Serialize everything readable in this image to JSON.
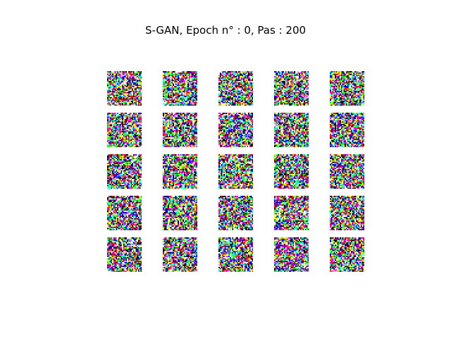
{
  "title": "S-GAN, Epoch n° : 0, Pas : 200",
  "grid": {
    "rows": 5,
    "cols": 5,
    "pixels_per_side": 28
  },
  "palette": [
    "#ff0000",
    "#00ff00",
    "#0000ff",
    "#ffff00",
    "#ff00ff",
    "#00ffff",
    "#000000",
    "#ffffff"
  ]
}
